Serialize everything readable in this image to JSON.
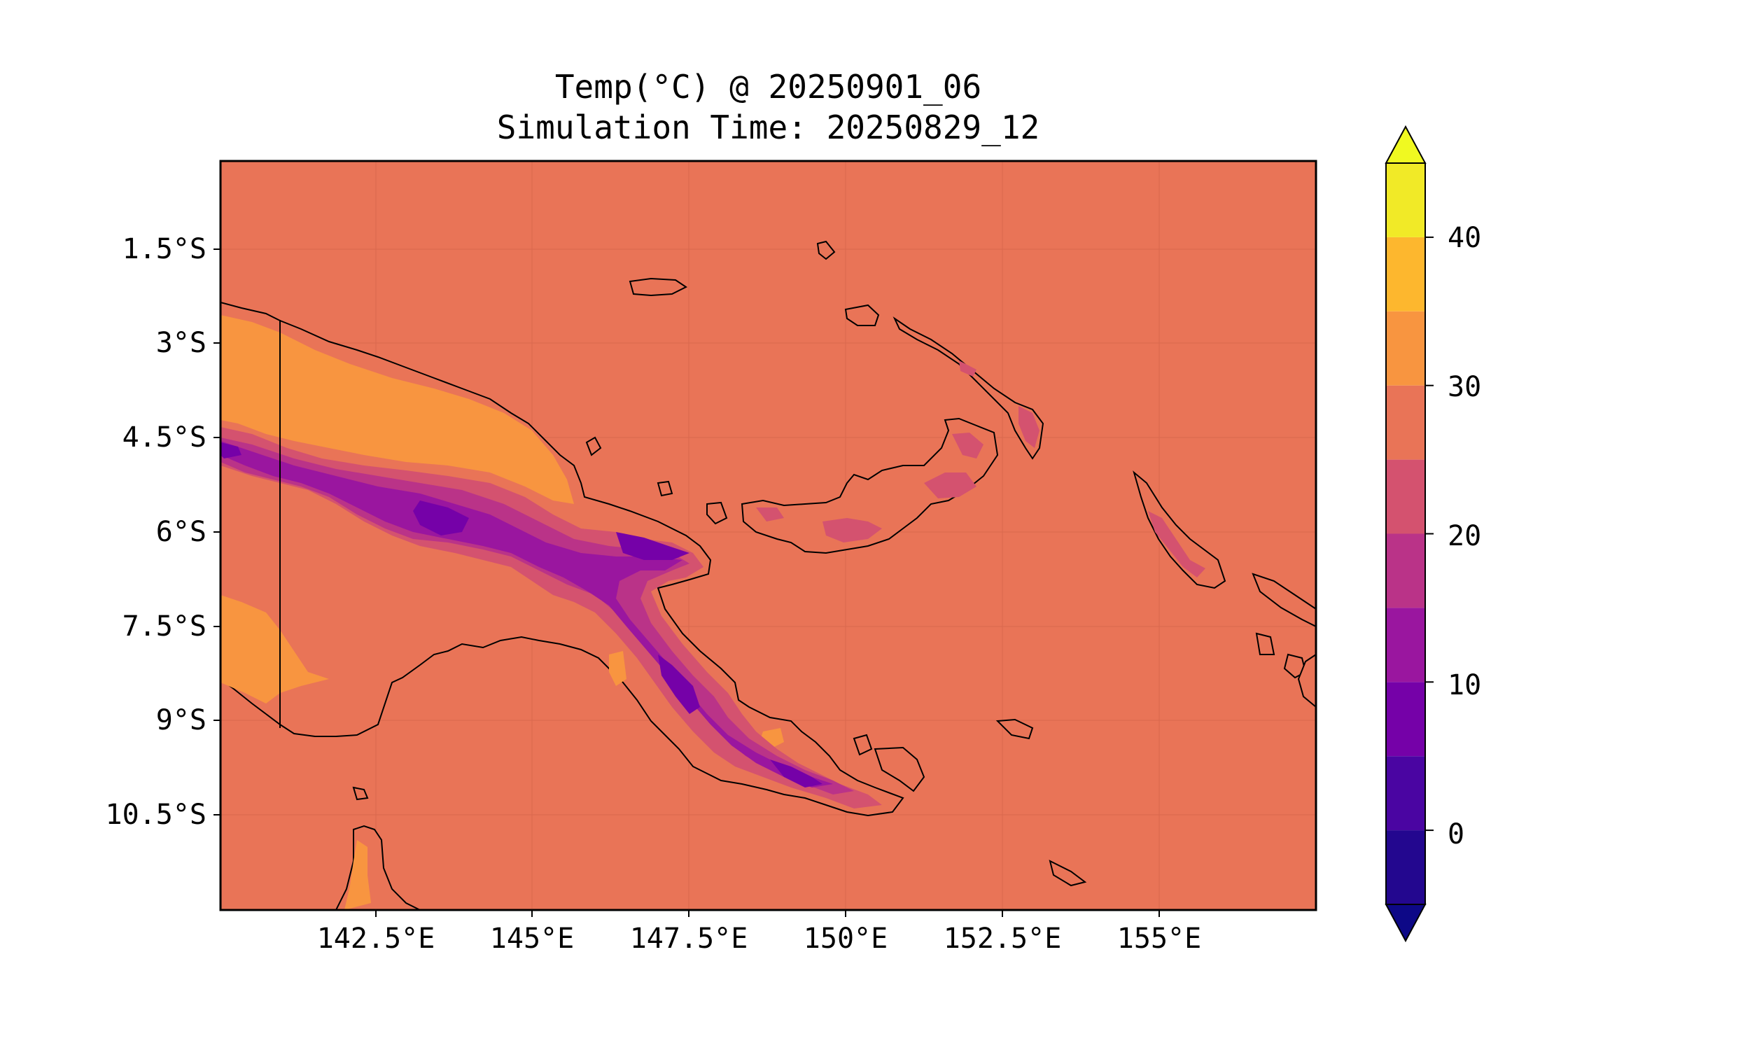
{
  "title": "Temp(°C) @ 20250901_06",
  "subtitle": "Simulation Time: 20250829_12",
  "map": {
    "lat_labels": [
      "1.5°S",
      "3°S",
      "4.5°S",
      "6°S",
      "7.5°S",
      "9°S",
      "10.5°S"
    ],
    "lon_labels": [
      "142.5°E",
      "145°E",
      "147.5°E",
      "150°E",
      "152.5°E",
      "155°E"
    ],
    "ocean_color": "#e97457"
  },
  "colorbar": {
    "tick_labels": [
      "0",
      "10",
      "20",
      "30",
      "40"
    ],
    "levels": [
      -5,
      0,
      5,
      10,
      15,
      20,
      25,
      30,
      35,
      40,
      45
    ],
    "colors": [
      "#23078f",
      "#4a05a2",
      "#7501a8",
      "#9a169f",
      "#ba3388",
      "#d4526f",
      "#e97457",
      "#f89540",
      "#fdb72e",
      "#f1ea27"
    ],
    "under_color": "#0d0887",
    "over_color": "#f0f921",
    "extend": "both"
  }
}
